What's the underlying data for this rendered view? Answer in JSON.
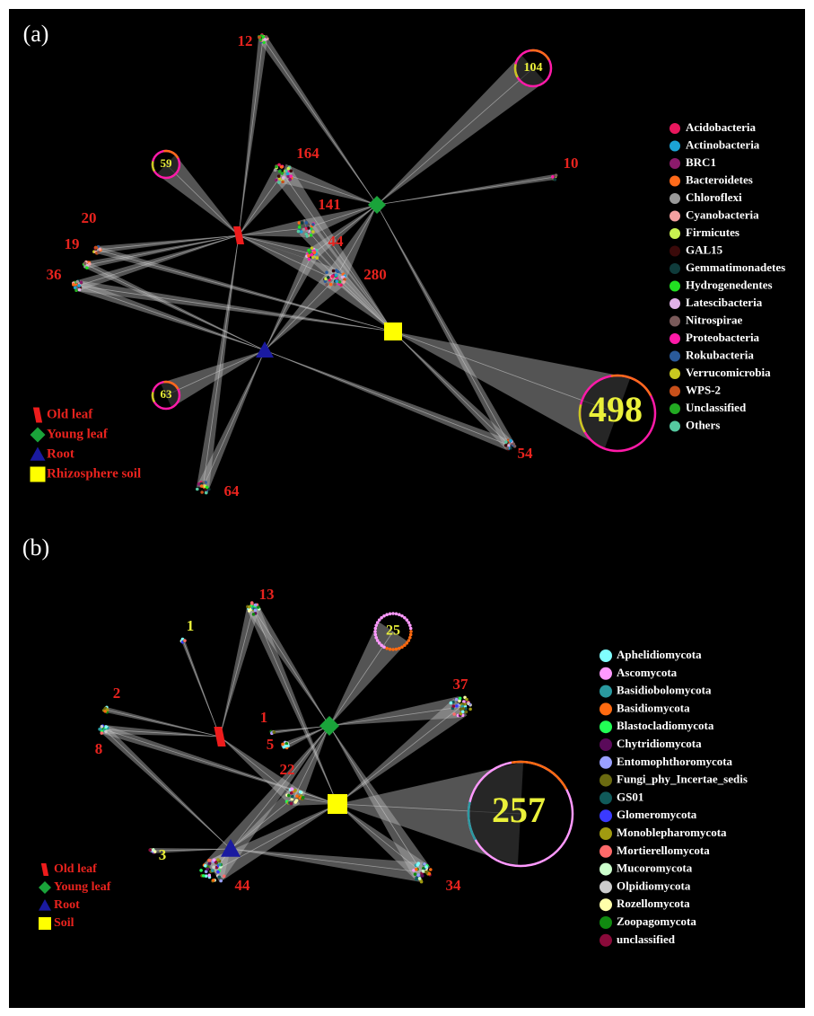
{
  "panels": [
    {
      "label": "(a)",
      "hubs": [
        {
          "label": "Old leaf"
        },
        {
          "label": "Young leaf"
        },
        {
          "label": "Root"
        },
        {
          "label": "Rhizosphere soil"
        }
      ],
      "clusters": [
        {
          "label": 12
        },
        {
          "label": 104
        },
        {
          "label": 10
        },
        {
          "label": 59
        },
        {
          "label": 164
        },
        {
          "label": 141
        },
        {
          "label": 44
        },
        {
          "label": 280
        },
        {
          "label": 20
        },
        {
          "label": 19
        },
        {
          "label": 36
        },
        {
          "label": 63
        },
        {
          "label": 498
        },
        {
          "label": 54
        },
        {
          "label": 64
        }
      ],
      "legend": [
        {
          "name": "Acidobacteria",
          "color": "#e8175d"
        },
        {
          "name": "Actinobacteria",
          "color": "#1ca3d6"
        },
        {
          "name": "BRC1",
          "color": "#8b1a6b"
        },
        {
          "name": "Bacteroidetes",
          "color": "#ff6a1a"
        },
        {
          "name": "Chloroflexi",
          "color": "#999999"
        },
        {
          "name": "Cyanobacteria",
          "color": "#f4a0a0"
        },
        {
          "name": "Firmicutes",
          "color": "#c8f050"
        },
        {
          "name": "GAL15",
          "color": "#3a0a0a"
        },
        {
          "name": "Gemmatimonadetes",
          "color": "#0f3b3b"
        },
        {
          "name": "Hydrogenedentes",
          "color": "#22e022"
        },
        {
          "name": "Latescibacteria",
          "color": "#e0b0e8"
        },
        {
          "name": "Nitrospirae",
          "color": "#7a5a5a"
        },
        {
          "name": "Proteobacteria",
          "color": "#ff1aa8"
        },
        {
          "name": "Rokubacteria",
          "color": "#2a5a9a"
        },
        {
          "name": "Verrucomicrobia",
          "color": "#c8c820"
        },
        {
          "name": "WPS-2",
          "color": "#c8501a"
        },
        {
          "name": "Unclassified",
          "color": "#22aa22"
        },
        {
          "name": "Others",
          "color": "#55c8a0"
        }
      ]
    },
    {
      "label": "(b)",
      "hubs": [
        {
          "label": "Old leaf"
        },
        {
          "label": "Young leaf"
        },
        {
          "label": "Root"
        },
        {
          "label": "Soil"
        }
      ],
      "clusters": [
        {
          "label": 13
        },
        {
          "label": 25
        },
        {
          "label": 1
        },
        {
          "label": 1
        },
        {
          "label": 2
        },
        {
          "label": 8
        },
        {
          "label": 5
        },
        {
          "label": 37
        },
        {
          "label": 22
        },
        {
          "label": 257
        },
        {
          "label": 3
        },
        {
          "label": 44
        },
        {
          "label": 34
        }
      ],
      "legend": [
        {
          "name": "Aphelidiomycota",
          "color": "#80ffff"
        },
        {
          "name": "Ascomycota",
          "color": "#ff99ff"
        },
        {
          "name": "Basidiobolomycota",
          "color": "#2a9aa0"
        },
        {
          "name": "Basidiomycota",
          "color": "#ff6a10"
        },
        {
          "name": "Blastocladiomycota",
          "color": "#22ff55"
        },
        {
          "name": "Chytridiomycota",
          "color": "#5a0a5a"
        },
        {
          "name": "Entomophthoromycota",
          "color": "#9aa0ff"
        },
        {
          "name": "Fungi_phy_Incertae_sedis",
          "color": "#6a6a10"
        },
        {
          "name": "GS01",
          "color": "#105a5a"
        },
        {
          "name": "Glomeromycota",
          "color": "#3a3aff"
        },
        {
          "name": "Monoblepharomycota",
          "color": "#a09a10"
        },
        {
          "name": "Mortierellomycota",
          "color": "#ff6a6a"
        },
        {
          "name": "Mucoromycota",
          "color": "#ccffcc"
        },
        {
          "name": "Olpidiomycota",
          "color": "#cccccc"
        },
        {
          "name": "Rozellomycota",
          "color": "#ffffaa"
        },
        {
          "name": "Zoopagomycota",
          "color": "#108a10"
        },
        {
          "name": "unclassified",
          "color": "#8a0a3a"
        }
      ]
    }
  ]
}
